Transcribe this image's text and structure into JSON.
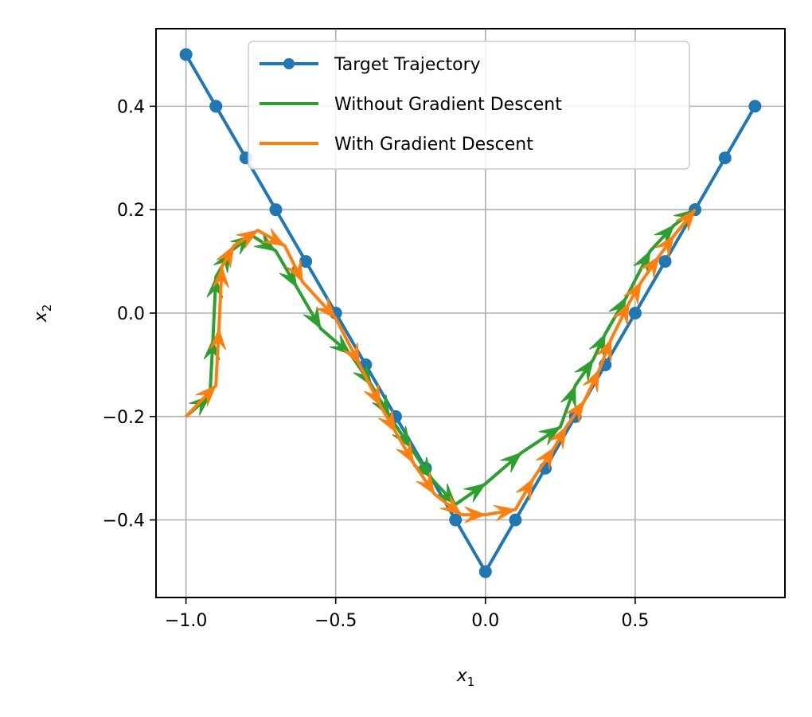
{
  "chart_data": {
    "type": "line",
    "xlabel": "x",
    "xlabel_sub": "1",
    "ylabel": "x",
    "ylabel_sub": "2",
    "xlim": [
      -1.1,
      1.0
    ],
    "ylim": [
      -0.55,
      0.55
    ],
    "xticks": [
      -1.0,
      -0.5,
      0.0,
      0.5
    ],
    "xtick_labels": [
      "−1.0",
      "−0.5",
      "0.0",
      "0.5"
    ],
    "yticks": [
      -0.4,
      -0.2,
      0.0,
      0.2,
      0.4
    ],
    "ytick_labels": [
      "−0.4",
      "−0.2",
      "0.0",
      "0.2",
      "0.4"
    ],
    "grid": true,
    "legend_position": "top-center",
    "series": [
      {
        "name": "Target Trajectory",
        "color": "#1f77b4",
        "marker": "circle",
        "x": [
          -1.0,
          -0.9,
          -0.8,
          -0.7,
          -0.6,
          -0.5,
          -0.4,
          -0.3,
          -0.2,
          -0.1,
          0.0,
          0.1,
          0.2,
          0.3,
          0.4,
          0.5,
          0.6,
          0.7,
          0.8,
          0.9
        ],
        "y": [
          0.5,
          0.4,
          0.3,
          0.2,
          0.1,
          0.0,
          -0.1,
          -0.2,
          -0.3,
          -0.4,
          -0.5,
          -0.4,
          -0.3,
          -0.2,
          -0.1,
          0.0,
          0.1,
          0.2,
          0.3,
          0.4
        ]
      },
      {
        "name": "Without Gradient Descent",
        "color": "#2ca02c",
        "marker": "arrow",
        "x": [
          -1.0,
          -0.92,
          -0.91,
          -0.9,
          -0.85,
          -0.78,
          -0.7,
          -0.63,
          -0.55,
          -0.45,
          -0.38,
          -0.32,
          -0.25,
          -0.18,
          -0.1,
          0.0,
          0.12,
          0.25,
          0.3,
          0.36,
          0.4,
          0.47,
          0.55,
          0.63,
          0.7
        ],
        "y": [
          -0.2,
          -0.16,
          -0.05,
          0.07,
          0.12,
          0.15,
          0.12,
          0.05,
          -0.03,
          -0.08,
          -0.14,
          -0.2,
          -0.26,
          -0.32,
          -0.37,
          -0.33,
          -0.27,
          -0.22,
          -0.14,
          -0.09,
          -0.04,
          0.03,
          0.12,
          0.17,
          0.2
        ]
      },
      {
        "name": "With Gradient Descent",
        "color": "#ff7f0e",
        "marker": "arrow",
        "x": [
          -1.0,
          -0.9,
          -0.89,
          -0.88,
          -0.84,
          -0.76,
          -0.67,
          -0.61,
          -0.5,
          -0.42,
          -0.35,
          -0.3,
          -0.24,
          -0.17,
          -0.08,
          0.0,
          0.1,
          0.16,
          0.23,
          0.27,
          0.33,
          0.38,
          0.42,
          0.48,
          0.52,
          0.58,
          0.63,
          0.7
        ],
        "y": [
          -0.2,
          -0.14,
          -0.03,
          0.09,
          0.13,
          0.16,
          0.13,
          0.06,
          -0.01,
          -0.1,
          -0.18,
          -0.23,
          -0.29,
          -0.35,
          -0.39,
          -0.39,
          -0.38,
          -0.32,
          -0.26,
          -0.22,
          -0.17,
          -0.11,
          -0.05,
          0.02,
          0.06,
          0.11,
          0.15,
          0.2
        ]
      }
    ]
  }
}
